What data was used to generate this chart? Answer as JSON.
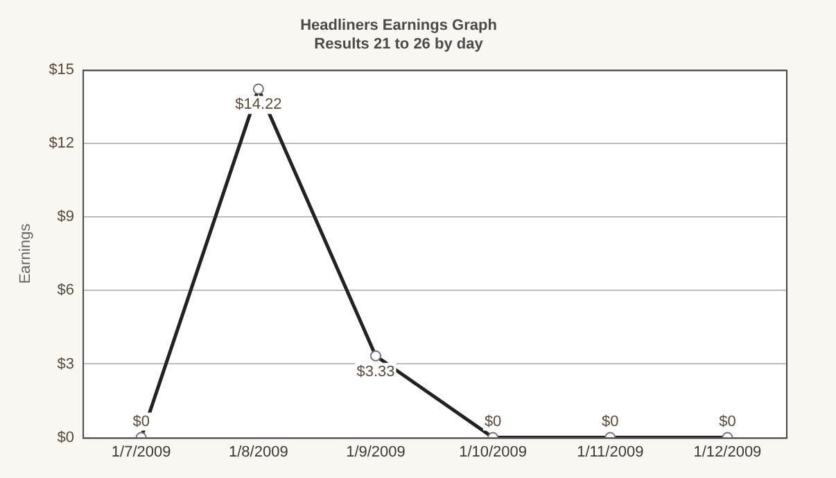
{
  "chart_data": {
    "type": "line",
    "title": "Headliners Earnings Graph",
    "subtitle": "Results 21 to 26 by day",
    "ylabel": "Earnings",
    "categories": [
      "1/7/2009",
      "1/8/2009",
      "1/9/2009",
      "1/10/2009",
      "1/11/2009",
      "1/12/2009"
    ],
    "series": [
      {
        "color": "#222222",
        "values": [
          0,
          14.22,
          3.33,
          0,
          0,
          0
        ],
        "value_labels": [
          "$0",
          "$14.22",
          "$3.33",
          "$0",
          "$0",
          "$0"
        ]
      }
    ],
    "ylim": [
      0,
      15
    ],
    "yticks": [
      {
        "value": 0,
        "label": "$0"
      },
      {
        "value": 3,
        "label": "$3"
      },
      {
        "value": 6,
        "label": "$6"
      },
      {
        "value": 9,
        "label": "$9"
      },
      {
        "value": 12,
        "label": "$12"
      },
      {
        "value": 15,
        "label": "$15"
      }
    ],
    "grid": "y",
    "legend": false,
    "marker": "circle",
    "line_style": "solid"
  }
}
